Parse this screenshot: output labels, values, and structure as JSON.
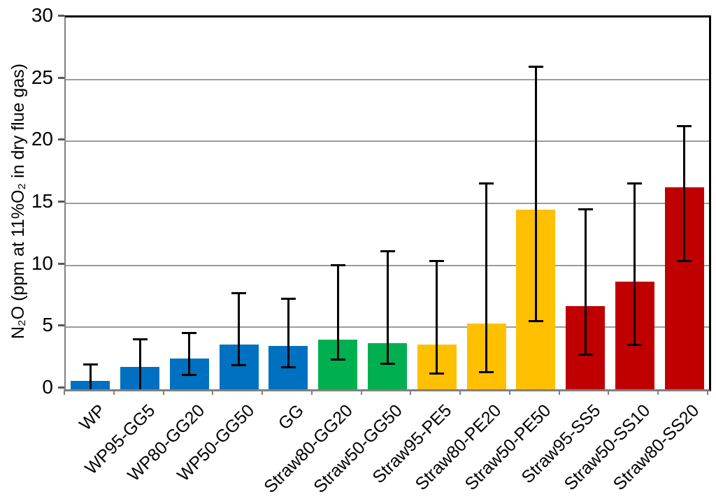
{
  "chart_data": {
    "type": "bar",
    "title": "",
    "xlabel": "",
    "ylabel": "N₂O (ppm at 11%O₂ in dry flue gas)",
    "ylim": [
      0,
      30
    ],
    "y_ticks": [
      0,
      5,
      10,
      15,
      20,
      25,
      30
    ],
    "grid": "horizontal gridlines every 5, gray",
    "legend_position": "none",
    "x_label_rotation_deg": -45,
    "categories": [
      "WP",
      "WP95-GG5",
      "WP80-GG20",
      "WP50-GG50",
      "GG",
      "Straw80-GG20",
      "Straw50-GG50",
      "Straw95-PE5",
      "Straw80-PE20",
      "Straw50-PE50",
      "Straw95-SS5",
      "Straw50-SS10",
      "Straw80-SS20"
    ],
    "values": [
      0.7,
      1.8,
      2.5,
      3.6,
      3.5,
      4.0,
      3.7,
      3.6,
      5.3,
      14.5,
      6.7,
      8.7,
      16.3
    ],
    "error_whisker_high": [
      2.0,
      4.0,
      4.5,
      7.7,
      7.3,
      10.0,
      11.1,
      10.3,
      16.6,
      26.0,
      14.5,
      16.6,
      21.2
    ],
    "error_whisker_low": [
      0,
      0,
      1.2,
      2.0,
      1.8,
      2.4,
      2.1,
      1.3,
      1.4,
      5.5,
      2.8,
      3.6,
      10.4
    ],
    "bar_groups": [
      "blue",
      "blue",
      "blue",
      "blue",
      "blue",
      "green",
      "green",
      "yellow",
      "yellow",
      "yellow",
      "red",
      "red",
      "red"
    ],
    "group_colors": {
      "blue": "#0070C0",
      "green": "#00B050",
      "yellow": "#FFC000",
      "red": "#C00000"
    },
    "error_bar_color": "#000000",
    "gridline_color": "#9C9C9C",
    "axis_color": "#808080",
    "border_color": "#000000"
  }
}
